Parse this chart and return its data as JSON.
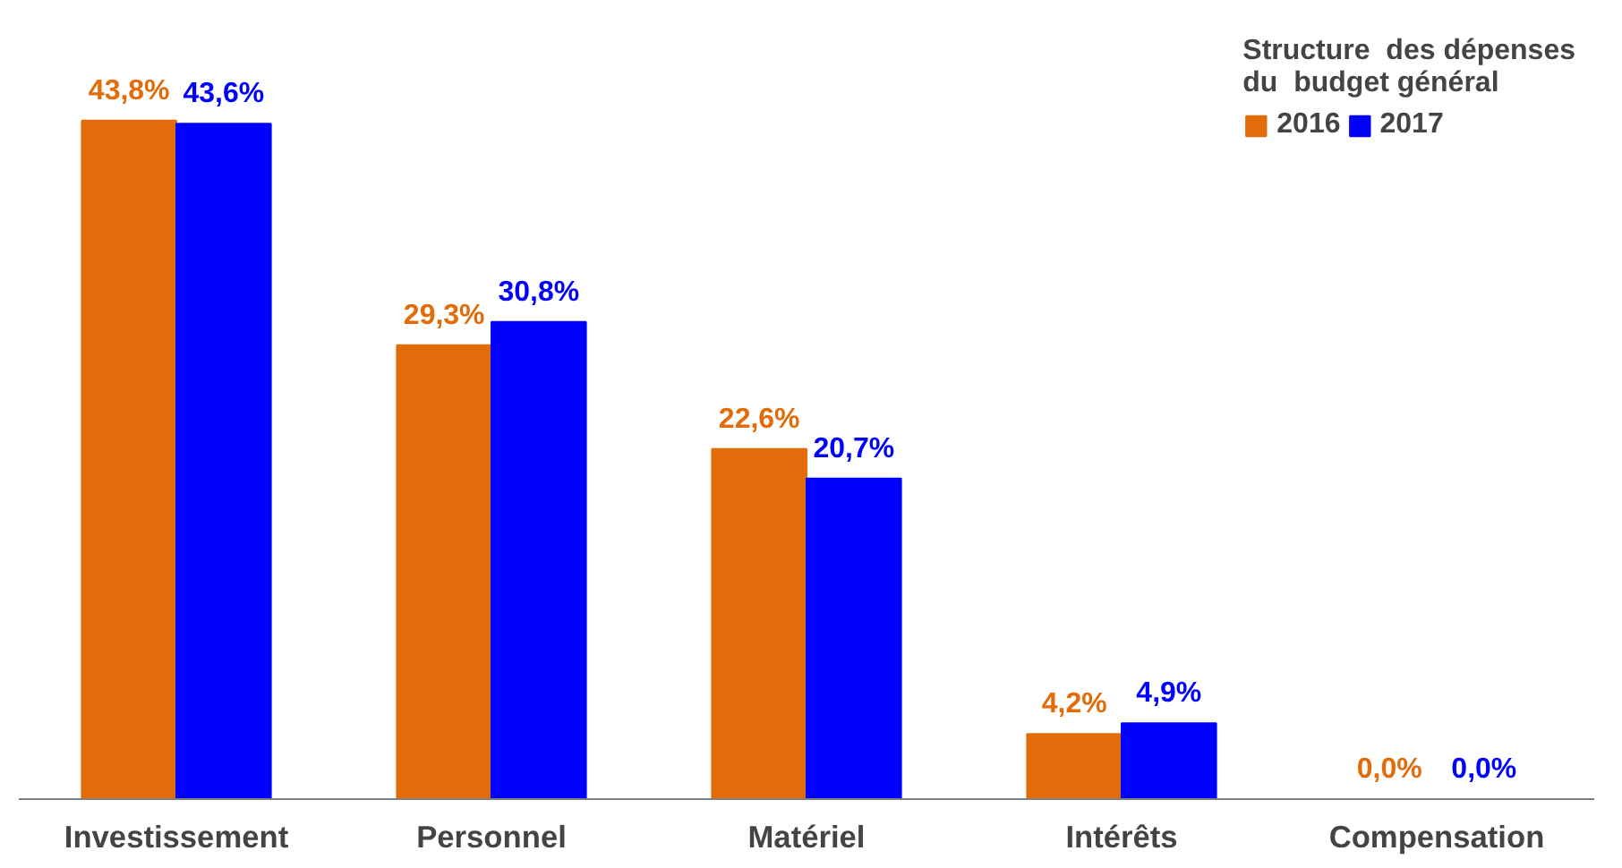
{
  "chart_data": {
    "type": "bar",
    "legend_title": "Structure  des dépenses\ndu  budget général",
    "categories": [
      "Investissement",
      "Personnel",
      "Matériel",
      "Intérêts",
      "Compensation"
    ],
    "series": [
      {
        "name": "2016",
        "color": "#e36c0a",
        "values": [
          43.8,
          29.3,
          22.6,
          4.2,
          0.0
        ],
        "value_labels": [
          "43,8%",
          "29,3%",
          "22,6%",
          "4,2%",
          "0,0%"
        ]
      },
      {
        "name": "2017",
        "color": "#0000ff",
        "values": [
          43.6,
          30.8,
          20.7,
          4.9,
          0.0
        ],
        "value_labels": [
          "43,6%",
          "30,8%",
          "20,7%",
          "4,9%",
          "0,0%"
        ]
      }
    ],
    "tick_labels": "x",
    "grid": false,
    "legend": "top right"
  }
}
